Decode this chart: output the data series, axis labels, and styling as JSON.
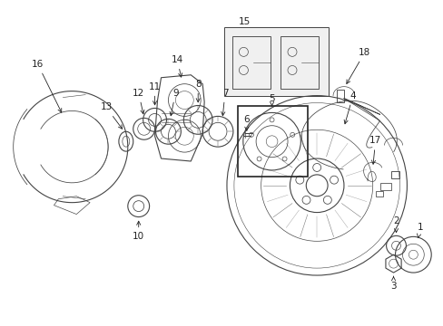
{
  "background_color": "#ffffff",
  "fig_width": 4.89,
  "fig_height": 3.6,
  "dpi": 100,
  "line_color": "#444444",
  "label_color": "#222222",
  "label_fontsize": 7.5,
  "lw": 0.8
}
